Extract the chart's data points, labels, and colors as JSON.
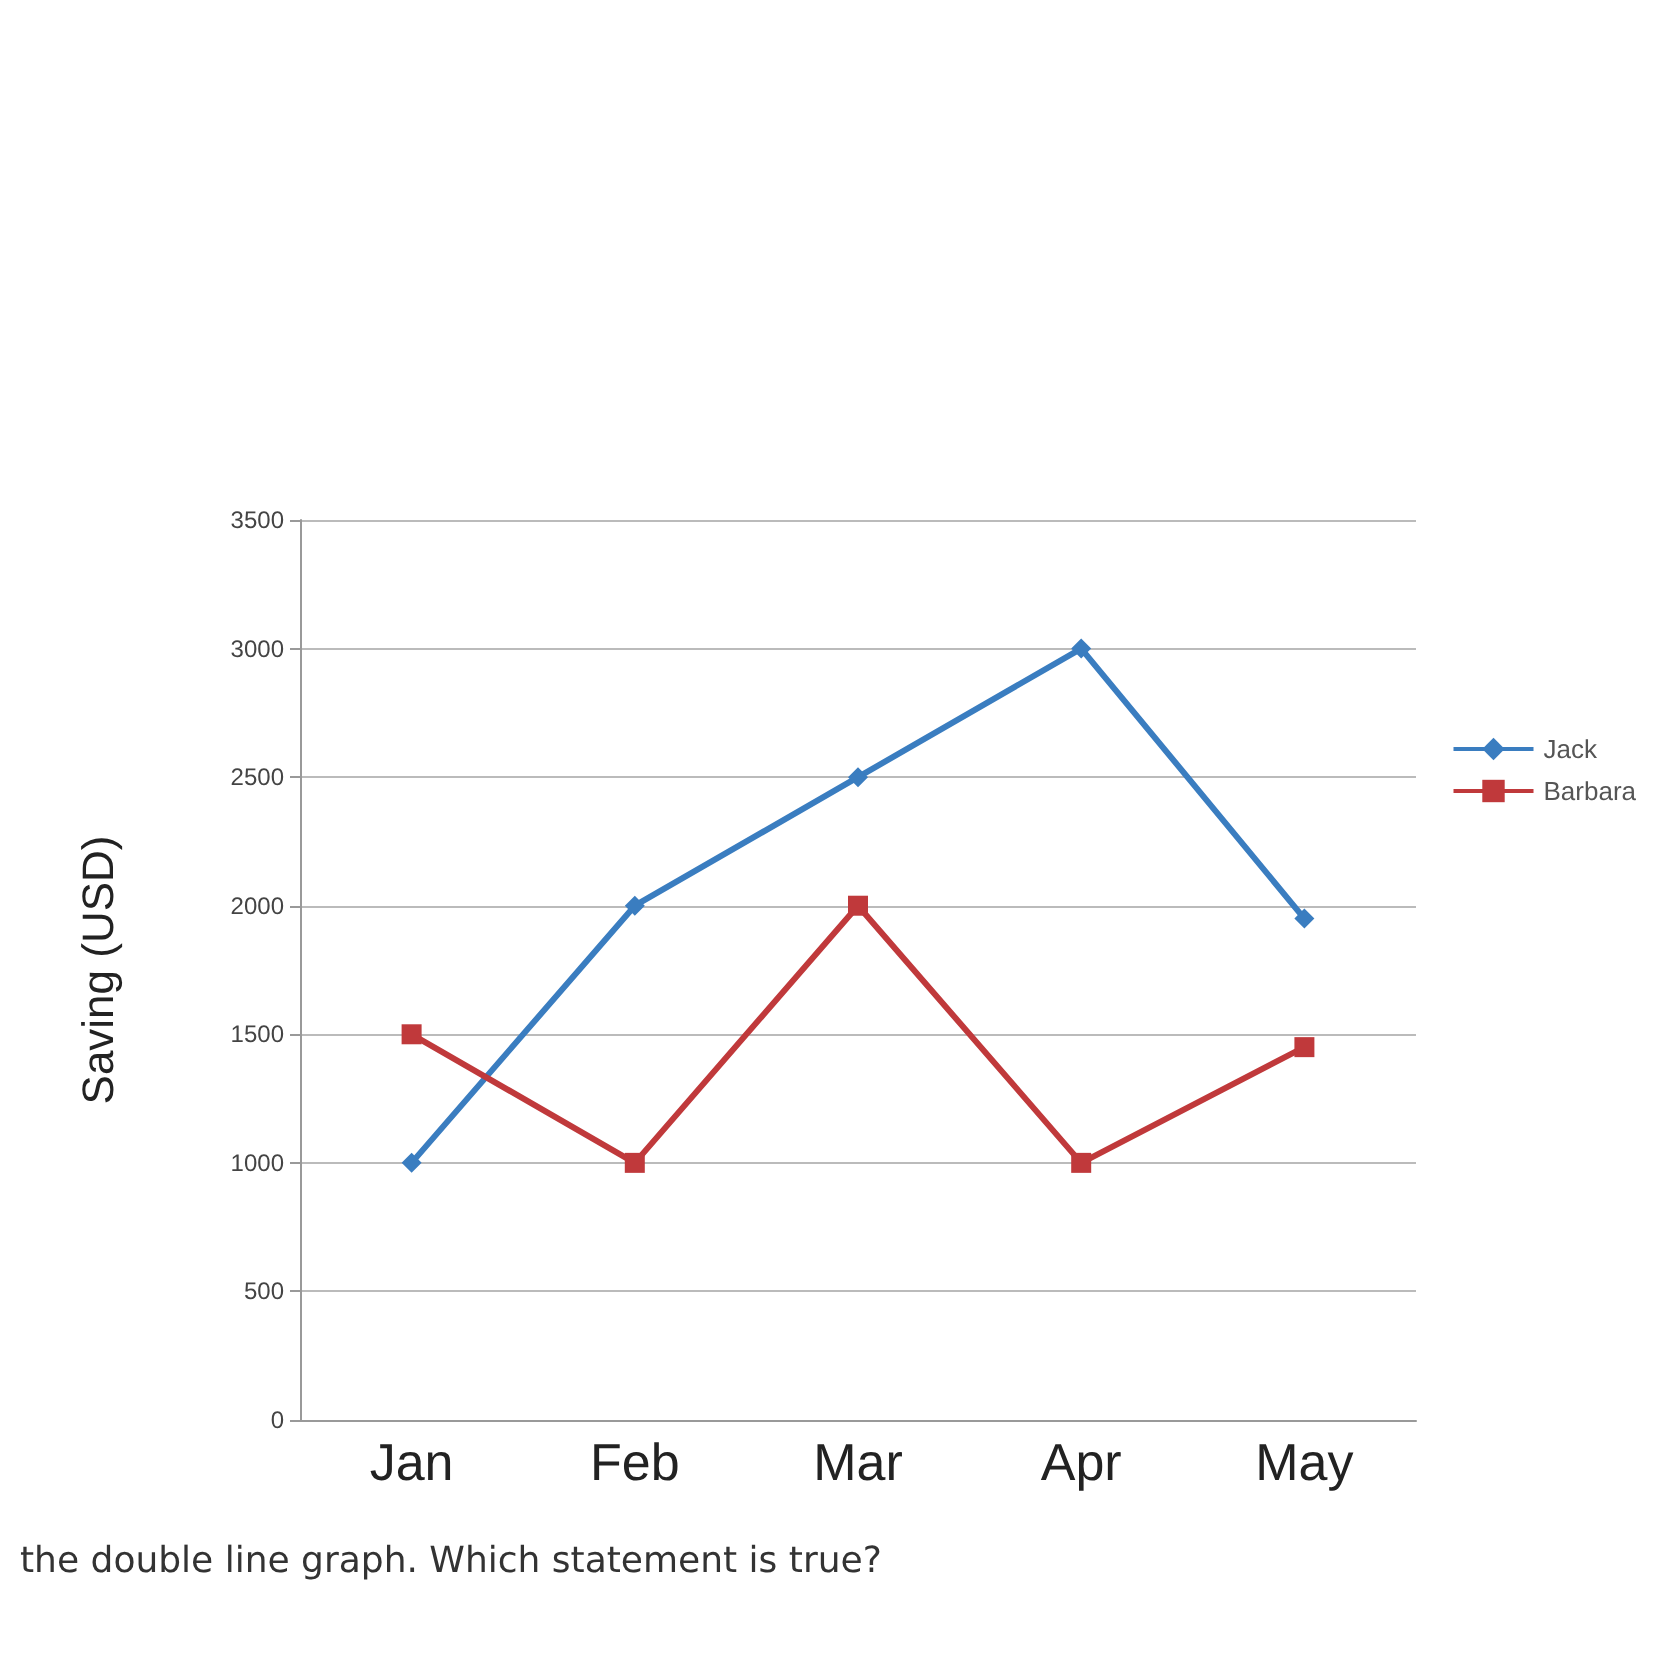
{
  "chart_data": {
    "type": "line",
    "ylabel": "Saving (USD)",
    "categories": [
      "Jan",
      "Feb",
      "Mar",
      "Apr",
      "May"
    ],
    "series": [
      {
        "name": "Jack",
        "color": "#3a7dc0",
        "marker": "diamond",
        "values": [
          1000,
          2000,
          2500,
          3000,
          1950
        ]
      },
      {
        "name": "Barbara",
        "color": "#c0393b",
        "marker": "square",
        "values": [
          1500,
          1000,
          2000,
          1000,
          1450
        ]
      }
    ],
    "ylim": [
      0,
      3500
    ],
    "yticks": [
      0,
      500,
      1000,
      1500,
      2000,
      2500,
      3000,
      3500
    ],
    "grid": "y",
    "legend": "right",
    "line_style": "solid",
    "annotations": [
      "the double line graph. Which statement is true?"
    ]
  }
}
